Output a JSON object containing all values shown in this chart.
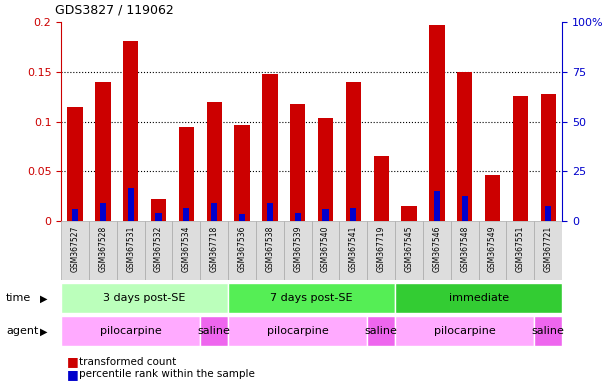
{
  "title": "GDS3827 / 119062",
  "samples": [
    "GSM367527",
    "GSM367528",
    "GSM367531",
    "GSM367532",
    "GSM367534",
    "GSM367718",
    "GSM367536",
    "GSM367538",
    "GSM367539",
    "GSM367540",
    "GSM367541",
    "GSM367719",
    "GSM367545",
    "GSM367546",
    "GSM367548",
    "GSM367549",
    "GSM367551",
    "GSM367721"
  ],
  "red_values": [
    0.115,
    0.14,
    0.181,
    0.022,
    0.094,
    0.12,
    0.097,
    0.148,
    0.118,
    0.104,
    0.14,
    0.065,
    0.015,
    0.197,
    0.15,
    0.046,
    0.126,
    0.128
  ],
  "blue_values": [
    0.012,
    0.018,
    0.033,
    0.008,
    0.013,
    0.018,
    0.007,
    0.018,
    0.008,
    0.012,
    0.013,
    0.0,
    0.0,
    0.03,
    0.025,
    0.0,
    0.0,
    0.015
  ],
  "blue_pct": [
    6,
    9,
    17,
    4,
    6.5,
    9,
    3.5,
    9,
    4,
    6,
    6.5,
    0,
    0,
    15,
    12.5,
    0,
    0,
    7.5
  ],
  "ylim_left": [
    0,
    0.2
  ],
  "ylim_right": [
    0,
    100
  ],
  "yticks_left": [
    0,
    0.05,
    0.1,
    0.15,
    0.2
  ],
  "yticks_right": [
    0,
    25,
    50,
    75,
    100
  ],
  "left_axis_color": "#cc0000",
  "right_axis_color": "#0000cc",
  "bar_red": "#cc0000",
  "bar_blue": "#0000cc",
  "time_groups": [
    {
      "label": "3 days post-SE",
      "start": 0,
      "end": 5,
      "color": "#bbffbb"
    },
    {
      "label": "7 days post-SE",
      "start": 6,
      "end": 11,
      "color": "#55ee55"
    },
    {
      "label": "immediate",
      "start": 12,
      "end": 17,
      "color": "#33cc33"
    }
  ],
  "agent_groups": [
    {
      "label": "pilocarpine",
      "start": 0,
      "end": 4,
      "color": "#ffaaff"
    },
    {
      "label": "saline",
      "start": 5,
      "end": 5,
      "color": "#ee66ee"
    },
    {
      "label": "pilocarpine",
      "start": 6,
      "end": 10,
      "color": "#ffaaff"
    },
    {
      "label": "saline",
      "start": 11,
      "end": 11,
      "color": "#ee66ee"
    },
    {
      "label": "pilocarpine",
      "start": 12,
      "end": 16,
      "color": "#ffaaff"
    },
    {
      "label": "saline",
      "start": 17,
      "end": 17,
      "color": "#ee66ee"
    }
  ],
  "legend_red": "transformed count",
  "legend_blue": "percentile rank within the sample",
  "time_label": "time",
  "agent_label": "agent",
  "background_color": "#ffffff",
  "tick_label_color_left": "#cc0000",
  "tick_label_color_right": "#0000cc",
  "sample_bg_color": "#dddddd",
  "sample_border_color": "#aaaaaa"
}
